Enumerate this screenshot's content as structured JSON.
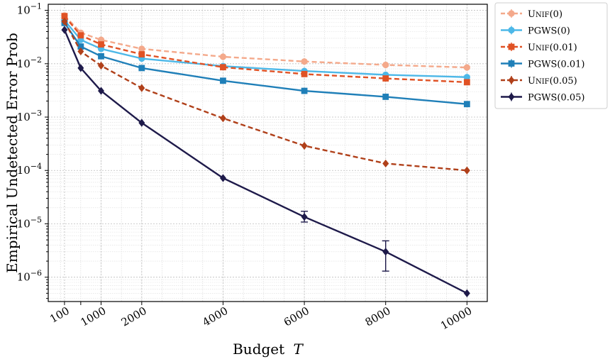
{
  "chart_data": {
    "type": "line",
    "title": "",
    "xlabel": "Budget",
    "xlabel_italic": "T",
    "ylabel": "Empirical Undetected Error Prob",
    "x": [
      100,
      500,
      1000,
      2000,
      4000,
      6000,
      8000,
      10000
    ],
    "x_tick_labels": [
      "100",
      "1000",
      "2000",
      "4000",
      "6000",
      "8000",
      "10000"
    ],
    "x_tick_values": [
      100,
      1000,
      2000,
      4000,
      6000,
      8000,
      10000
    ],
    "xlim": [
      -300,
      10500
    ],
    "ylim": [
      3.5e-07,
      0.13
    ],
    "y_scale": "log",
    "y_tick_labels": [
      {
        "base": "10",
        "exp": "−6",
        "value": 1e-06
      },
      {
        "base": "10",
        "exp": "−5",
        "value": 1e-05
      },
      {
        "base": "10",
        "exp": "−4",
        "value": 0.0001
      },
      {
        "base": "10",
        "exp": "−3",
        "value": 0.001
      },
      {
        "base": "10",
        "exp": "−2",
        "value": 0.01
      },
      {
        "base": "10",
        "exp": "−1",
        "value": 0.1
      }
    ],
    "grid": true,
    "legend_placement": "outside top-right",
    "series": [
      {
        "name": "UNIF(0)",
        "display_main": "U",
        "display_small": "NIF",
        "display_suffix": "(0)",
        "color": "#f4a98b",
        "dash": true,
        "marker": "circle",
        "values": [
          0.08,
          0.038,
          0.028,
          0.019,
          0.0135,
          0.011,
          0.0095,
          0.0085
        ]
      },
      {
        "name": "PGWS(0)",
        "display_main": "PGWS",
        "display_small": "",
        "display_suffix": "(0)",
        "color": "#4db8e8",
        "dash": false,
        "marker": "circle",
        "values": [
          0.065,
          0.028,
          0.019,
          0.0125,
          0.009,
          0.0073,
          0.0062,
          0.0056
        ]
      },
      {
        "name": "UNIF(0.01)",
        "display_main": "U",
        "display_small": "NIF",
        "display_suffix": "(0.01)",
        "color": "#e05225",
        "dash": true,
        "marker": "square",
        "values": [
          0.078,
          0.034,
          0.023,
          0.015,
          0.0086,
          0.0064,
          0.0053,
          0.0045
        ]
      },
      {
        "name": "PGWS(0.01)",
        "display_main": "PGWS",
        "display_small": "",
        "display_suffix": "(0.01)",
        "color": "#1f7fb8",
        "dash": false,
        "marker": "square",
        "values": [
          0.058,
          0.021,
          0.0138,
          0.0083,
          0.0048,
          0.0031,
          0.0024,
          0.00175
        ]
      },
      {
        "name": "UNIF(0.05)",
        "display_main": "U",
        "display_small": "NIF",
        "display_suffix": "(0.05)",
        "color": "#b0401a",
        "dash": true,
        "marker": "diamond",
        "values": [
          0.062,
          0.017,
          0.0092,
          0.0035,
          0.00095,
          0.00029,
          0.000135,
          0.0001
        ]
      },
      {
        "name": "PGWS(0.05)",
        "display_main": "PGWS",
        "display_small": "",
        "display_suffix": "(0.05)",
        "color": "#1e1a4a",
        "dash": false,
        "marker": "diamond",
        "values": [
          0.043,
          0.0083,
          0.0031,
          0.00078,
          7.2e-05,
          1.35e-05,
          3e-06,
          5e-07
        ],
        "error_bars": [
          null,
          null,
          null,
          null,
          null,
          [
            1.08e-05,
            1.72e-05
          ],
          [
            1.3e-06,
            4.8e-06
          ],
          null
        ]
      }
    ]
  }
}
